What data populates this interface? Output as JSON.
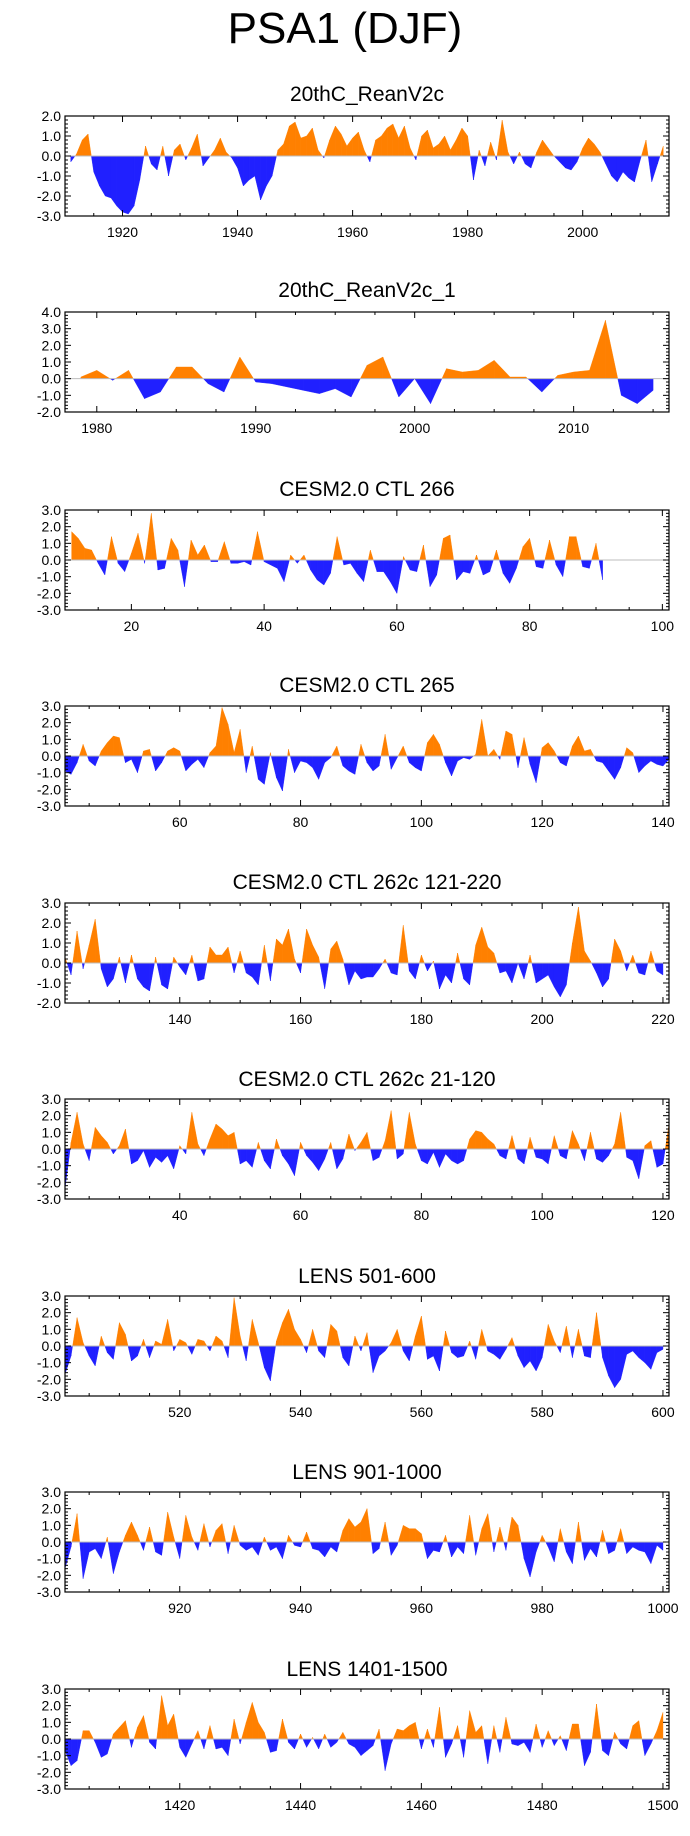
{
  "title": "PSA1 (DJF)",
  "colors": {
    "positive": "#ff8000",
    "negative": "#2020ff",
    "axis": "#000000",
    "zero_line": "#bdbdbd"
  },
  "chart_data": [
    {
      "type": "area",
      "title": "20thC_ReanV2c",
      "xlim": [
        1910,
        2015
      ],
      "ylim": [
        -3.0,
        2.0
      ],
      "yticks": [
        -3.0,
        -2.0,
        -1.0,
        0.0,
        1.0,
        2.0
      ],
      "xticks": [
        1920,
        1940,
        1960,
        1980,
        2000
      ],
      "x_start": 1911,
      "values": [
        -0.3,
        0.1,
        0.8,
        1.1,
        -0.8,
        -1.5,
        -2.0,
        -2.1,
        -2.5,
        -2.8,
        -2.9,
        -2.5,
        -1.2,
        0.5,
        -0.4,
        -0.7,
        0.5,
        -1.0,
        0.3,
        0.6,
        -0.2,
        0.4,
        1.1,
        -0.5,
        -0.1,
        0.3,
        0.9,
        0.2,
        -0.1,
        -0.6,
        -1.5,
        -1.2,
        -1.0,
        -2.2,
        -1.5,
        -1.0,
        0.3,
        0.6,
        1.5,
        1.7,
        0.9,
        1.0,
        1.4,
        0.3,
        -0.1,
        0.8,
        1.5,
        1.1,
        0.5,
        0.9,
        1.2,
        0.3,
        -0.3,
        0.8,
        1.0,
        1.4,
        1.6,
        0.9,
        1.5,
        0.4,
        -0.2,
        1.0,
        1.3,
        0.4,
        0.6,
        1.0,
        0.3,
        0.8,
        1.4,
        1.0,
        -1.2,
        0.3,
        -0.5,
        0.7,
        -0.2,
        1.8,
        0.2,
        -0.4,
        0.2,
        -0.4,
        -0.6,
        0.2,
        0.8,
        0.4,
        0.0,
        -0.3,
        -0.6,
        -0.7,
        -0.3,
        0.4,
        0.9,
        0.6,
        0.2,
        -0.4,
        -1.0,
        -1.3,
        -0.8,
        -1.1,
        -1.3,
        -0.2,
        0.8,
        -1.3,
        -0.4,
        0.5
      ]
    },
    {
      "type": "area",
      "title": "20thC_ReanV2c_1",
      "xlim": [
        1978,
        2016
      ],
      "ylim": [
        -2.0,
        4.0
      ],
      "yticks": [
        -2.0,
        -1.0,
        0.0,
        1.0,
        2.0,
        3.0,
        4.0
      ],
      "xticks": [
        1980,
        1990,
        2000,
        2010
      ],
      "x_start": 1979,
      "values": [
        0.1,
        0.5,
        -0.1,
        0.5,
        -1.2,
        -0.8,
        0.7,
        0.7,
        -0.3,
        -0.8,
        1.3,
        -0.2,
        -0.3,
        -0.5,
        -0.7,
        -0.9,
        -0.6,
        -1.1,
        0.8,
        1.3,
        -1.1,
        0.0,
        -1.5,
        0.6,
        0.4,
        0.5,
        1.1,
        0.1,
        0.1,
        -0.8,
        0.2,
        0.4,
        0.5,
        3.5,
        -1.0,
        -1.5,
        -0.7
      ]
    },
    {
      "type": "area",
      "title": "CESM2.0 CTL 266",
      "xlim": [
        10,
        101
      ],
      "ylim": [
        -3.0,
        3.0
      ],
      "yticks": [
        -3.0,
        -2.0,
        -1.0,
        0.0,
        1.0,
        2.0,
        3.0
      ],
      "xticks": [
        20,
        40,
        60,
        80,
        100
      ],
      "x_start": 11,
      "values": [
        1.7,
        1.3,
        0.7,
        0.6,
        -0.2,
        -0.9,
        1.4,
        -0.2,
        -0.7,
        0.4,
        1.6,
        -0.2,
        2.8,
        -0.6,
        -0.5,
        1.3,
        0.6,
        -1.6,
        1.2,
        0.3,
        0.9,
        -0.1,
        -0.1,
        1.1,
        -0.2,
        -0.2,
        -0.1,
        -0.3,
        1.7,
        -0.1,
        -0.3,
        -0.5,
        -1.3,
        0.3,
        -0.2,
        0.3,
        -0.6,
        -1.2,
        -1.5,
        -0.8,
        1.4,
        -0.3,
        -0.2,
        -0.8,
        -1.3,
        0.6,
        -0.7,
        -0.7,
        -1.3,
        -2.0,
        0.2,
        -0.6,
        -0.7,
        0.9,
        -1.6,
        -0.9,
        1.3,
        1.5,
        -1.2,
        -0.7,
        -0.8,
        0.3,
        -0.9,
        -0.7,
        0.6,
        -0.8,
        -1.4,
        -0.5,
        0.8,
        1.3,
        -0.4,
        -0.5,
        1.2,
        -0.3,
        -1.0,
        1.4,
        1.4,
        -0.4,
        -0.5,
        1.0,
        -1.2
      ]
    },
    {
      "type": "area",
      "title": "CESM2.0 CTL 265",
      "xlim": [
        41,
        141
      ],
      "ylim": [
        -3.0,
        3.0
      ],
      "yticks": [
        -3.0,
        -2.0,
        -1.0,
        0.0,
        1.0,
        2.0,
        3.0
      ],
      "xticks": [
        60,
        80,
        100,
        120,
        140
      ],
      "x_start": 41,
      "values": [
        -0.9,
        -1.1,
        -0.4,
        0.7,
        -0.3,
        -0.6,
        0.3,
        0.8,
        1.2,
        1.1,
        -0.4,
        -0.2,
        -1.0,
        0.3,
        0.4,
        -0.9,
        -0.4,
        0.3,
        0.5,
        0.3,
        -0.9,
        -0.5,
        -0.2,
        -0.7,
        0.2,
        0.6,
        2.9,
        1.9,
        0.2,
        1.6,
        -1.0,
        0.6,
        -1.4,
        -1.7,
        0.2,
        -1.3,
        -2.1,
        0.4,
        -1.0,
        -0.3,
        -0.4,
        -0.7,
        -1.4,
        -0.4,
        -0.1,
        0.6,
        -0.6,
        -0.9,
        -1.1,
        0.7,
        -0.4,
        -0.9,
        -0.6,
        1.3,
        -0.8,
        -0.1,
        0.6,
        -0.4,
        -0.7,
        -0.9,
        0.8,
        1.3,
        0.7,
        -0.4,
        -1.2,
        -0.3,
        -0.1,
        -0.2,
        0.1,
        2.2,
        0.0,
        0.4,
        -0.2,
        1.5,
        1.3,
        -0.7,
        1.1,
        -0.5,
        -1.6,
        0.5,
        0.8,
        0.3,
        -0.4,
        -0.6,
        0.6,
        1.2,
        0.3,
        0.4,
        -0.3,
        -0.4,
        -0.9,
        -1.4,
        -0.7,
        0.5,
        0.2,
        -1.0,
        -0.6,
        -0.3,
        -0.5,
        -0.6,
        -0.2
      ]
    },
    {
      "type": "area",
      "title": "CESM2.0 CTL 262c 121-220",
      "xlim": [
        121,
        221
      ],
      "ylim": [
        -2.0,
        3.0
      ],
      "yticks": [
        -2.0,
        -1.0,
        0.0,
        1.0,
        2.0,
        3.0
      ],
      "xticks": [
        140,
        160,
        180,
        200,
        220
      ],
      "x_start": 121,
      "values": [
        0.3,
        -0.6,
        1.6,
        -0.3,
        0.9,
        2.2,
        -0.3,
        -1.2,
        -0.8,
        0.3,
        -1.0,
        0.4,
        -0.8,
        -1.2,
        -1.4,
        0.3,
        -1.1,
        -1.3,
        0.3,
        -0.2,
        -0.6,
        0.4,
        -0.9,
        -0.8,
        0.8,
        0.4,
        0.4,
        0.8,
        -0.5,
        0.6,
        -0.5,
        -0.7,
        -1.1,
        0.9,
        -0.9,
        1.2,
        0.9,
        1.7,
        0.2,
        -0.5,
        1.7,
        0.9,
        0.3,
        -1.3,
        0.7,
        1.1,
        0.2,
        -1.1,
        -0.4,
        -0.8,
        -0.7,
        -0.7,
        -0.3,
        0.2,
        -0.5,
        -0.6,
        1.9,
        -0.4,
        -0.8,
        0.4,
        -0.4,
        0.1,
        -1.3,
        -0.6,
        -1.0,
        0.5,
        -0.8,
        -1.1,
        0.9,
        1.8,
        0.8,
        0.5,
        -0.5,
        -0.4,
        -1.0,
        0.0,
        -0.8,
        0.4,
        -1.0,
        -0.8,
        -0.6,
        -1.2,
        -1.7,
        -1.1,
        1.0,
        2.8,
        0.6,
        0.1,
        -0.5,
        -1.2,
        -0.8,
        1.2,
        0.6,
        -0.4,
        0.4,
        -0.5,
        -0.6,
        0.6,
        -0.4,
        -0.6
      ]
    },
    {
      "type": "area",
      "title": "CESM2.0 CTL 262c 21-120",
      "xlim": [
        21,
        121
      ],
      "ylim": [
        -3.0,
        3.0
      ],
      "yticks": [
        -3.0,
        -2.0,
        -1.0,
        0.0,
        1.0,
        2.0,
        3.0
      ],
      "xticks": [
        40,
        60,
        80,
        100,
        120
      ],
      "x_start": 21,
      "values": [
        -2.4,
        0.4,
        2.2,
        0.3,
        -0.7,
        1.3,
        0.8,
        0.4,
        -0.3,
        0.2,
        1.2,
        -0.9,
        -0.7,
        -0.1,
        -1.1,
        -0.5,
        -0.8,
        -0.4,
        -1.2,
        0.2,
        -0.3,
        2.2,
        0.3,
        -0.4,
        0.6,
        1.5,
        1.2,
        0.8,
        1.0,
        -0.9,
        -0.7,
        -1.1,
        0.4,
        -0.7,
        -1.2,
        0.6,
        -0.4,
        -0.9,
        -1.6,
        0.4,
        -0.4,
        -0.8,
        -1.3,
        -0.6,
        0.4,
        -1.2,
        -0.6,
        0.9,
        -0.1,
        0.4,
        1.0,
        -0.7,
        -0.5,
        0.5,
        2.3,
        -0.6,
        -0.3,
        2.2,
        0.3,
        -0.7,
        -0.9,
        -0.2,
        -1.1,
        -0.3,
        -0.7,
        -0.9,
        -0.7,
        0.6,
        1.1,
        1.0,
        0.6,
        0.3,
        -0.4,
        -0.6,
        0.8,
        -0.6,
        -0.9,
        0.7,
        -0.5,
        -0.6,
        -0.9,
        0.8,
        -0.4,
        -0.6,
        1.1,
        0.3,
        -0.7,
        1.0,
        -0.6,
        -0.8,
        -0.4,
        0.3,
        2.2,
        -0.5,
        -0.7,
        -1.8,
        0.2,
        0.5,
        -1.1,
        -0.9,
        1.5
      ]
    },
    {
      "type": "area",
      "title": "LENS 501-600",
      "xlim": [
        501,
        601
      ],
      "ylim": [
        -3.0,
        3.0
      ],
      "yticks": [
        -3.0,
        -2.0,
        -1.0,
        0.0,
        1.0,
        2.0,
        3.0
      ],
      "xticks": [
        520,
        540,
        560,
        580,
        600
      ],
      "x_start": 501,
      "values": [
        -1.7,
        -0.6,
        1.7,
        0.2,
        -0.6,
        -1.2,
        0.6,
        -0.4,
        -0.8,
        1.4,
        0.7,
        -0.9,
        -0.6,
        0.4,
        -0.7,
        0.3,
        0.1,
        1.6,
        -0.3,
        0.4,
        0.2,
        -0.5,
        0.4,
        0.3,
        -0.3,
        0.6,
        0.3,
        -0.7,
        2.9,
        0.6,
        -0.9,
        1.6,
        0.2,
        -1.3,
        -2.1,
        0.3,
        1.4,
        2.2,
        1.0,
        0.4,
        -0.4,
        1.0,
        -0.3,
        -0.7,
        1.3,
        0.9,
        -0.7,
        -1.2,
        0.6,
        -0.3,
        0.8,
        -1.6,
        -0.6,
        -0.3,
        0.2,
        1.0,
        -0.3,
        -0.9,
        0.6,
        1.8,
        -0.8,
        -0.6,
        -1.5,
        0.9,
        -0.4,
        -0.7,
        -0.6,
        0.3,
        -0.8,
        1.0,
        -0.3,
        -0.5,
        -0.8,
        -0.2,
        0.5,
        -0.6,
        -1.3,
        -0.9,
        -1.5,
        -0.7,
        1.3,
        0.3,
        -0.4,
        1.2,
        -0.7,
        1.0,
        -0.6,
        -0.7,
        2.0,
        -0.7,
        -1.8,
        -2.5,
        -2.0,
        -0.5,
        -0.3,
        -0.7,
        -1.0,
        -1.4,
        -0.4,
        -0.2
      ]
    },
    {
      "type": "area",
      "title": "LENS 901-1000",
      "xlim": [
        901,
        1001
      ],
      "ylim": [
        -3.0,
        3.0
      ],
      "yticks": [
        -3.0,
        -2.0,
        -1.0,
        0.0,
        1.0,
        2.0,
        3.0
      ],
      "xticks": [
        920,
        940,
        960,
        980,
        1000
      ],
      "x_start": 901,
      "values": [
        -1.6,
        -0.3,
        1.7,
        -2.2,
        -0.6,
        -0.4,
        -1.0,
        0.3,
        -1.9,
        -0.6,
        0.4,
        1.2,
        0.4,
        -0.5,
        0.9,
        -0.6,
        -0.8,
        1.8,
        0.3,
        -1.0,
        1.6,
        0.3,
        -0.5,
        1.1,
        -0.3,
        0.7,
        1.1,
        -0.7,
        1.0,
        -0.2,
        -0.5,
        -0.3,
        -0.8,
        0.3,
        -0.5,
        -0.3,
        -1.0,
        0.4,
        -0.2,
        -0.3,
        0.6,
        -0.4,
        -0.5,
        -0.9,
        -0.3,
        -0.6,
        0.7,
        1.4,
        0.9,
        1.2,
        2.0,
        -0.7,
        -0.4,
        1.2,
        -0.8,
        -0.2,
        1.0,
        0.8,
        0.8,
        0.5,
        -1.0,
        -0.5,
        -0.6,
        0.4,
        -0.9,
        -0.3,
        -0.7,
        1.6,
        -0.8,
        0.8,
        1.7,
        -0.6,
        0.9,
        -0.5,
        1.5,
        1.0,
        -1.0,
        -2.1,
        -0.6,
        0.4,
        -0.3,
        -1.2,
        0.8,
        -0.6,
        -1.3,
        1.2,
        -1.1,
        -0.4,
        -0.9,
        0.7,
        -0.7,
        -0.5,
        0.8,
        -0.7,
        -0.3,
        -0.5,
        -0.6,
        -1.3,
        -0.2,
        -0.5
      ]
    },
    {
      "type": "area",
      "title": "LENS 1401-1500",
      "xlim": [
        1401,
        1501
      ],
      "ylim": [
        -3.0,
        3.0
      ],
      "yticks": [
        -3.0,
        -2.0,
        -1.0,
        0.0,
        1.0,
        2.0,
        3.0
      ],
      "xticks": [
        1420,
        1440,
        1460,
        1480,
        1500
      ],
      "x_start": 1401,
      "values": [
        -0.7,
        -1.6,
        -1.3,
        0.5,
        0.5,
        -0.2,
        -1.1,
        -0.9,
        0.3,
        0.7,
        1.1,
        -0.5,
        0.7,
        1.4,
        -0.2,
        -0.6,
        2.6,
        0.8,
        1.5,
        -0.5,
        -1.1,
        -0.3,
        0.5,
        -0.6,
        0.8,
        -0.6,
        -0.5,
        -1.0,
        1.2,
        -0.3,
        1.0,
        2.2,
        1.0,
        0.4,
        -0.8,
        -0.7,
        1.2,
        -0.2,
        -0.6,
        0.3,
        -0.5,
        0.1,
        -0.6,
        0.3,
        -0.5,
        -0.2,
        0.4,
        -0.3,
        -0.5,
        -1.0,
        -0.7,
        -0.4,
        0.6,
        -1.9,
        -0.3,
        0.6,
        0.5,
        0.8,
        1.0,
        -0.6,
        0.6,
        -0.5,
        1.9,
        -1.1,
        -0.3,
        0.8,
        -1.1,
        1.7,
        0.4,
        0.8,
        -1.5,
        0.8,
        -0.8,
        1.3,
        -0.3,
        -0.4,
        -0.2,
        -0.8,
        0.9,
        -0.5,
        0.5,
        -0.4,
        0.2,
        -0.7,
        0.9,
        0.9,
        -1.6,
        -0.8,
        2.1,
        -0.7,
        -1.0,
        0.4,
        -0.3,
        -0.6,
        0.8,
        1.1,
        -1.0,
        -0.3,
        0.5,
        1.6
      ]
    }
  ]
}
